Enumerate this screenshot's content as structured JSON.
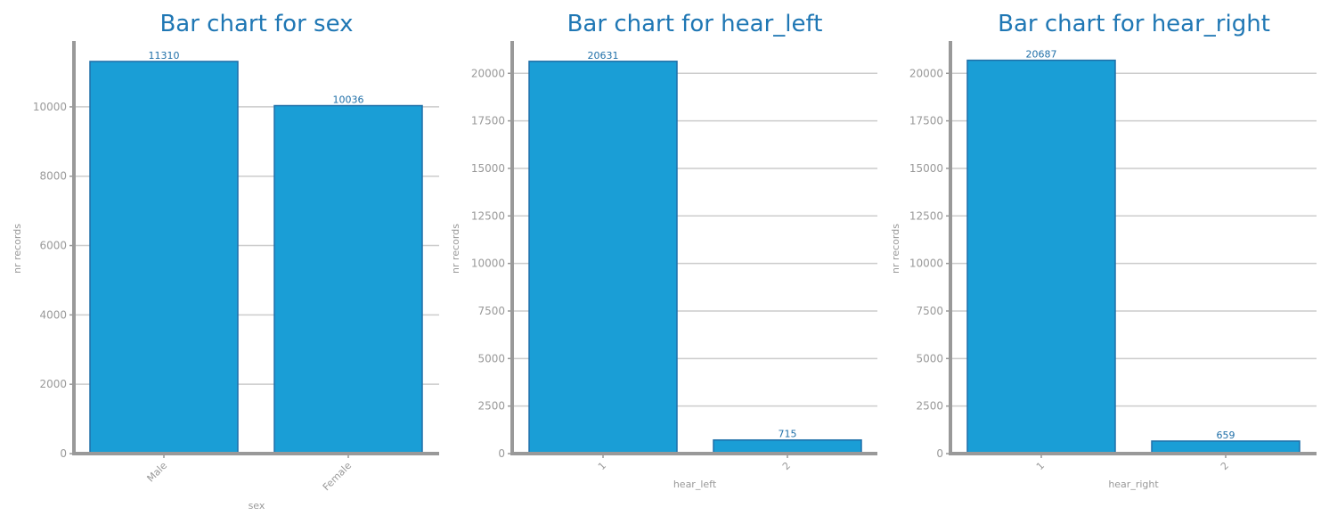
{
  "chart_data": [
    {
      "type": "bar",
      "title": "Bar chart for sex",
      "xlabel": "sex",
      "ylabel": "nr records",
      "categories": [
        "Male",
        "Female"
      ],
      "values": [
        11310,
        10036
      ],
      "value_labels": [
        "11310",
        "10036"
      ],
      "ylim": [
        0,
        11900
      ],
      "yticks": [
        0,
        2000,
        4000,
        6000,
        8000,
        10000
      ],
      "ytick_labels": [
        "0",
        "2000",
        "4000",
        "6000",
        "8000",
        "10000"
      ],
      "grid": true,
      "bar_color": "#1a9ed6",
      "edge_color": "#1f6fa8"
    },
    {
      "type": "bar",
      "title": "Bar chart for hear_left",
      "xlabel": "hear_left",
      "ylabel": "nr records",
      "categories": [
        "1",
        "2"
      ],
      "values": [
        20631,
        715
      ],
      "value_labels": [
        "20631",
        "715"
      ],
      "ylim": [
        0,
        21700
      ],
      "yticks": [
        0,
        2500,
        5000,
        7500,
        10000,
        12500,
        15000,
        17500,
        20000
      ],
      "ytick_labels": [
        "0",
        "2500",
        "5000",
        "7500",
        "10000",
        "12500",
        "15000",
        "17500",
        "20000"
      ],
      "grid": true,
      "bar_color": "#1a9ed6",
      "edge_color": "#1f6fa8"
    },
    {
      "type": "bar",
      "title": "Bar chart for hear_right",
      "xlabel": "hear_right",
      "ylabel": "nr records",
      "categories": [
        "1",
        "2"
      ],
      "values": [
        20687,
        659
      ],
      "value_labels": [
        "20687",
        "659"
      ],
      "ylim": [
        0,
        21700
      ],
      "yticks": [
        0,
        2500,
        5000,
        7500,
        10000,
        12500,
        15000,
        17500,
        20000
      ],
      "ytick_labels": [
        "0",
        "2500",
        "5000",
        "7500",
        "10000",
        "12500",
        "15000",
        "17500",
        "20000"
      ],
      "grid": true,
      "bar_color": "#1a9ed6",
      "edge_color": "#1f6fa8"
    }
  ],
  "colors": {
    "title": "#1f77b4",
    "axis": "#999999",
    "grid": "#cccccc",
    "label_text": "#999999"
  }
}
